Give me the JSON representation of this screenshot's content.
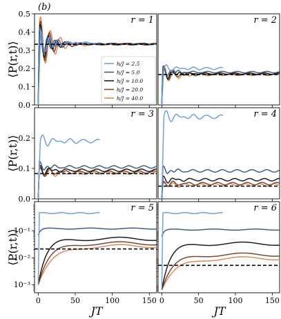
{
  "figure_label": "(b)",
  "ylabel": "⟨P(r,t)⟩",
  "xlabel": "JT",
  "colors": {
    "2.5": "#6f9fe6",
    "5.0": "#3f5f86",
    "10.0": "#1d1d1d",
    "20.0": "#7a4832",
    "40.0": "#e38a5a"
  },
  "chart_data": {
    "type": "line",
    "grid": false,
    "legend": {
      "placement": "right-center of r=1 panel",
      "entries": [
        "h/J = 2.5",
        "h/J = 5.0",
        "h/J = 10.0",
        "h/J = 20.0",
        "h/J = 40.0"
      ]
    },
    "x": {
      "label": "JT",
      "range": [
        -5,
        160
      ],
      "ticks": [
        0,
        50,
        100,
        150
      ]
    },
    "panels": [
      {
        "id": "r1",
        "label": "r = 1",
        "yscale": "linear",
        "ylim": [
          0,
          0.5
        ],
        "yticks": [
          "0.0",
          "0.1",
          "0.2",
          "0.3",
          "0.4",
          "0.5"
        ],
        "ytick_values": [
          0,
          0.1,
          0.2,
          0.3,
          0.4,
          0.5
        ],
        "reference_level": 0.333,
        "series": [
          {
            "name": "h/J = 2.5",
            "final": 0.34,
            "x_end": 83
          },
          {
            "name": "h/J = 5.0",
            "final": 0.335,
            "x_end": 160
          },
          {
            "name": "h/J = 10.0",
            "final": 0.334,
            "x_end": 160
          },
          {
            "name": "h/J = 20.0",
            "final": 0.333,
            "x_end": 160
          },
          {
            "name": "h/J = 40.0",
            "final": 0.333,
            "x_end": 160
          }
        ]
      },
      {
        "id": "r2",
        "label": "r = 2",
        "yscale": "linear",
        "ylim": [
          0,
          0.5
        ],
        "yticks": [],
        "ytick_values": [],
        "reference_level": 0.167,
        "series": [
          {
            "name": "h/J = 2.5",
            "final": 0.2,
            "x_end": 83
          },
          {
            "name": "h/J = 5.0",
            "final": 0.18,
            "x_end": 160
          },
          {
            "name": "h/J = 10.0",
            "final": 0.172,
            "x_end": 160
          },
          {
            "name": "h/J = 20.0",
            "final": 0.168,
            "x_end": 160
          },
          {
            "name": "h/J = 40.0",
            "final": 0.166,
            "x_end": 160
          }
        ]
      },
      {
        "id": "r3",
        "label": "r = 3",
        "yscale": "linear",
        "ylim": [
          0,
          0.3
        ],
        "yticks": [
          "0.0",
          "0.1",
          "0.2"
        ],
        "ytick_values": [
          0,
          0.1,
          0.2
        ],
        "reference_level": 0.083,
        "series": [
          {
            "name": "h/J = 2.5",
            "final": 0.19,
            "x_end": 83
          },
          {
            "name": "h/J = 5.0",
            "final": 0.105,
            "x_end": 160
          },
          {
            "name": "h/J = 10.0",
            "final": 0.094,
            "x_end": 160
          },
          {
            "name": "h/J = 20.0",
            "final": 0.088,
            "x_end": 160
          },
          {
            "name": "h/J = 40.0",
            "final": 0.085,
            "x_end": 160
          }
        ]
      },
      {
        "id": "r4",
        "label": "r = 4",
        "yscale": "linear",
        "ylim": [
          0,
          0.3
        ],
        "yticks": [],
        "ytick_values": [],
        "reference_level": 0.042,
        "series": [
          {
            "name": "h/J = 2.5",
            "final": 0.27,
            "x_end": 83
          },
          {
            "name": "h/J = 5.0",
            "final": 0.092,
            "x_end": 160
          },
          {
            "name": "h/J = 10.0",
            "final": 0.063,
            "x_end": 160
          },
          {
            "name": "h/J = 20.0",
            "final": 0.05,
            "x_end": 160
          },
          {
            "name": "h/J = 40.0",
            "final": 0.046,
            "x_end": 160
          }
        ]
      },
      {
        "id": "r5",
        "label": "r = 5",
        "yscale": "log",
        "ylim": [
          0.0005,
          1.2
        ],
        "yticks": [
          "10⁻³",
          "10⁻²",
          "10⁻¹"
        ],
        "ytick_values": [
          0.001,
          0.01,
          0.1
        ],
        "reference_level": 0.021,
        "series": [
          {
            "name": "h/J = 2.5",
            "final": 0.45,
            "x_end": 83
          },
          {
            "name": "h/J = 5.0",
            "final": 0.12,
            "x_end": 160
          },
          {
            "name": "h/J = 10.0",
            "final": 0.05,
            "x_end": 160
          },
          {
            "name": "h/J = 20.0",
            "final": 0.034,
            "x_end": 160
          },
          {
            "name": "h/J = 40.0",
            "final": 0.027,
            "x_end": 160
          }
        ]
      },
      {
        "id": "r6",
        "label": "r = 6",
        "yscale": "log",
        "ylim": [
          0.0005,
          1.2
        ],
        "yticks": [],
        "ytick_values": [],
        "reference_level": 0.0052,
        "series": [
          {
            "name": "h/J = 2.5",
            "final": 0.45,
            "x_end": 83
          },
          {
            "name": "h/J = 5.0",
            "final": 0.11,
            "x_end": 160
          },
          {
            "name": "h/J = 10.0",
            "final": 0.033,
            "x_end": 160
          },
          {
            "name": "h/J = 20.0",
            "final": 0.013,
            "x_end": 160
          },
          {
            "name": "h/J = 40.0",
            "final": 0.0095,
            "x_end": 160
          }
        ]
      }
    ]
  }
}
